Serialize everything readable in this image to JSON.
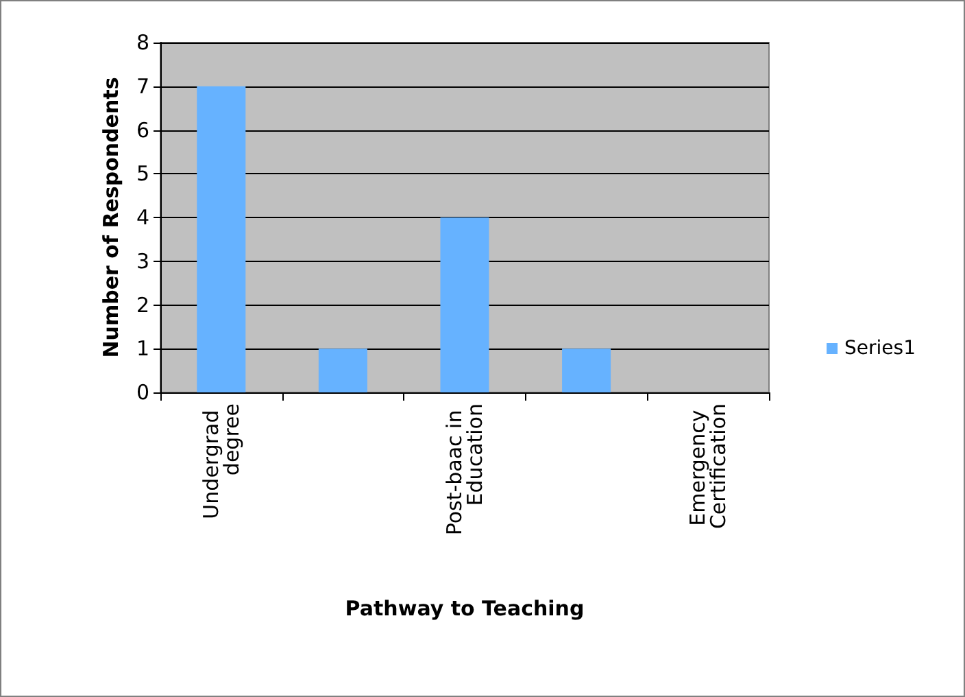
{
  "chart_data": {
    "type": "bar",
    "xlabel": "Pathway to Teaching",
    "ylabel": "Number of Respondents",
    "categories": [
      "Undergrad degree",
      null,
      "Post-baac in Education",
      null,
      "Emergency Certification"
    ],
    "series": [
      {
        "name": "Series1",
        "color": "#66b2ff",
        "values": [
          7,
          1,
          4,
          1,
          0
        ]
      }
    ],
    "ylim": [
      0,
      8
    ],
    "yticks": [
      0,
      1,
      2,
      3,
      4,
      5,
      6,
      7,
      8
    ],
    "grid": "y",
    "legend": "right"
  }
}
